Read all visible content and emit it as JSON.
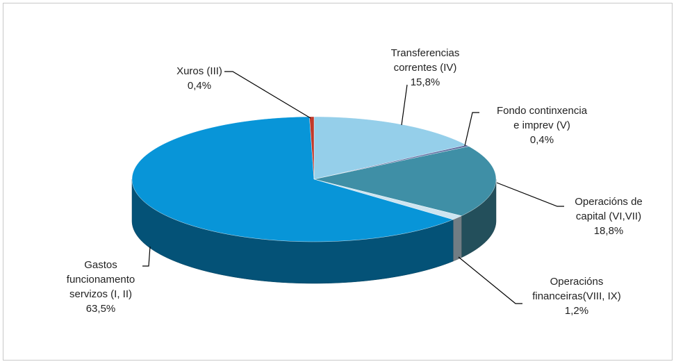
{
  "chart_data": {
    "type": "pie",
    "categories": [
      "Transferencias\ncorrentes (IV)",
      "Fondo continxencia\ne imprev (V)",
      "Operacións de\ncapital (VI,VII)",
      "Operacións\nfinanceiras(VIII, IX)",
      "Gastos\nfuncionamento\nservizos (I, II)",
      "Xuros (III)"
    ],
    "values": [
      15.8,
      0.4,
      18.8,
      1.2,
      63.5,
      0.4
    ],
    "value_labels": [
      "15,8%",
      "0,4%",
      "18,8%",
      "1,2%",
      "63,5%",
      "0,4%"
    ],
    "colors": [
      "#95cfea",
      "#5b6aa0",
      "#3f8fa6",
      "#cde4f0",
      "#0895d8",
      "#c0392b"
    ]
  }
}
